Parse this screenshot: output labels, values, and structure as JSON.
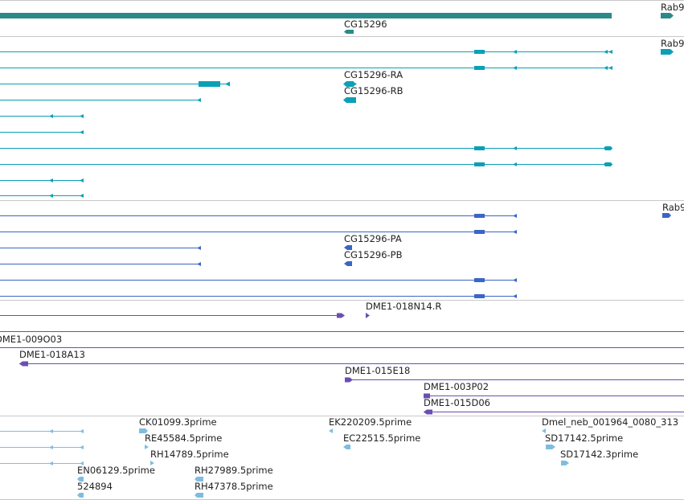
{
  "colors": {
    "gene": "#2a8a8a",
    "transcript": "#0aa0b5",
    "protein": "#3a66c4",
    "bac": "#6a4fb0",
    "est": "#7fbde0",
    "separator": "#c8c8c8"
  },
  "tracks": {
    "genes": {
      "labels": {
        "rab_truncated": "Rab9",
        "cg15296": "CG15296"
      }
    },
    "transcripts": {
      "labels": {
        "rab_truncated": "Rab9",
        "ra": "CG15296-RA",
        "rb": "CG15296-RB"
      }
    },
    "proteins": {
      "labels": {
        "rab_truncated": "Rab9",
        "pa": "CG15296-PA",
        "pb": "CG15296-PB"
      }
    },
    "bac_clones": {
      "labels": {
        "n14r": "DME1-018N14.R",
        "o03": "DME1-009O03",
        "a13": "DME1-018A13",
        "e18": "DME1-015E18",
        "p02": "DME1-003P02",
        "d06": "DME1-015D06"
      }
    },
    "ests": {
      "labels": {
        "ck01099": "CK01099.3prime",
        "ek220209": "EK220209.5prime",
        "dmel_neb": "Dmel_neb_001964_0080_313",
        "re45584": "RE45584.5prime",
        "ec22515": "EC22515.5prime",
        "sd17142_5": "SD17142.5prime",
        "rh14789": "RH14789.5prime",
        "sd17142_3": "SD17142.3prime",
        "en06129": "EN06129.5prime",
        "rh27989": "RH27989.5prime",
        "c524894": "524894",
        "rh47378": "RH47378.5prime"
      }
    }
  }
}
